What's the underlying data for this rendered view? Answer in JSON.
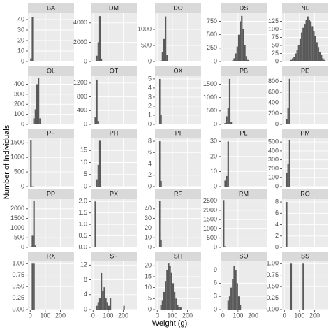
{
  "chart_data": {
    "type": "histogram",
    "xlabel": "Weight (g)",
    "ylabel": "Number of Individuals",
    "xlim": [
      -15,
      290
    ],
    "xticks": [
      0,
      100,
      200
    ],
    "color": "#595959",
    "grid": true,
    "facets": [
      {
        "title": "BA",
        "bins": [
          0,
          10,
          20
        ],
        "counts": [
          3,
          42
        ],
        "ylim": [
          0,
          46
        ],
        "yticks": [
          0,
          10,
          20,
          30,
          40
        ]
      },
      {
        "title": "DM",
        "bins": [
          10,
          20,
          30,
          40,
          50,
          60
        ],
        "counts": [
          50,
          600,
          2000,
          4700,
          300
        ],
        "ylim": [
          0,
          5000
        ],
        "yticks": [
          0,
          2000,
          4000
        ]
      },
      {
        "title": "DO",
        "bins": [
          20,
          30,
          40,
          50,
          60,
          70
        ],
        "counts": [
          30,
          300,
          700,
          1400,
          200
        ],
        "ylim": [
          0,
          1500
        ],
        "yticks": [
          0,
          500,
          1000
        ]
      },
      {
        "title": "DS",
        "bins": [
          60,
          70,
          80,
          90,
          100,
          110,
          120,
          130,
          140,
          150,
          160,
          170,
          180,
          190
        ],
        "counts": [
          20,
          60,
          150,
          280,
          500,
          750,
          850,
          600,
          300,
          100,
          30,
          10,
          5
        ],
        "ylim": [
          0,
          900
        ],
        "yticks": [
          0,
          250,
          500,
          750
        ]
      },
      {
        "title": "NL",
        "bins": [
          30,
          40,
          50,
          60,
          70,
          80,
          90,
          100,
          110,
          120,
          130,
          140,
          150,
          160,
          170,
          180,
          190,
          200,
          210,
          220,
          230,
          240,
          250,
          260,
          270,
          280
        ],
        "counts": [
          2,
          5,
          10,
          15,
          25,
          35,
          50,
          70,
          90,
          105,
          115,
          130,
          140,
          130,
          125,
          110,
          95,
          80,
          60,
          45,
          30,
          20,
          10,
          5,
          2
        ],
        "ylim": [
          0,
          150
        ],
        "yticks": [
          0,
          25,
          50,
          75,
          100,
          125
        ]
      },
      {
        "title": "OL",
        "bins": [
          20,
          30,
          40,
          50,
          60,
          70
        ],
        "counts": [
          60,
          150,
          400,
          460,
          60
        ],
        "ylim": [
          0,
          480
        ],
        "yticks": [
          0,
          100,
          200,
          300,
          400
        ]
      },
      {
        "title": "OT",
        "bins": [
          10,
          20,
          30,
          40
        ],
        "counts": [
          200,
          1300,
          100
        ],
        "ylim": [
          0,
          1400
        ],
        "yticks": [
          0,
          400,
          800,
          1200
        ]
      },
      {
        "title": "OX",
        "bins": [
          10,
          20,
          30
        ],
        "counts": [
          5,
          1
        ],
        "ylim": [
          0,
          5.3
        ],
        "yticks": [
          0,
          1,
          2,
          3,
          4,
          5
        ]
      },
      {
        "title": "PB",
        "bins": [
          10,
          20,
          30,
          40,
          50,
          60
        ],
        "counts": [
          50,
          300,
          600,
          1700,
          100
        ],
        "ylim": [
          0,
          1800
        ],
        "yticks": [
          0,
          500,
          1000,
          1500
        ]
      },
      {
        "title": "PE",
        "bins": [
          10,
          20,
          30,
          40
        ],
        "counts": [
          100,
          300,
          850
        ],
        "ylim": [
          0,
          900
        ],
        "yticks": [
          0,
          200,
          400,
          600,
          800
        ]
      },
      {
        "title": "PF",
        "bins": [
          0,
          10,
          20
        ],
        "counts": [
          1600,
          10
        ],
        "ylim": [
          0,
          1650
        ],
        "yticks": [
          0,
          500,
          1000,
          1500
        ]
      },
      {
        "title": "PH",
        "bins": [
          20,
          30,
          40,
          50
        ],
        "counts": [
          3,
          9,
          19
        ],
        "ylim": [
          0,
          20
        ],
        "yticks": [
          0,
          5,
          10,
          15
        ]
      },
      {
        "title": "PI",
        "bins": [
          10,
          20,
          30
        ],
        "counts": [
          8,
          1
        ],
        "ylim": [
          0,
          8.5
        ],
        "yticks": [
          0,
          2,
          4,
          6,
          8
        ]
      },
      {
        "title": "PL",
        "bins": [
          10,
          20,
          30,
          40
        ],
        "counts": [
          4,
          7,
          30
        ],
        "ylim": [
          0,
          32
        ],
        "yticks": [
          0,
          10,
          20,
          30
        ]
      },
      {
        "title": "PM",
        "bins": [
          10,
          20,
          30,
          40
        ],
        "counts": [
          150,
          250,
          520
        ],
        "ylim": [
          0,
          540
        ],
        "yticks": [
          0,
          100,
          200,
          300,
          400,
          500
        ]
      },
      {
        "title": "PP",
        "bins": [
          0,
          10,
          20,
          30,
          40
        ],
        "counts": [
          50,
          600,
          2400,
          100
        ],
        "ylim": [
          0,
          2500
        ],
        "yticks": [
          0,
          500,
          1000,
          1500,
          2000
        ]
      },
      {
        "title": "PX",
        "bins": [
          10,
          20
        ],
        "counts": [
          2
        ],
        "ylim": [
          0,
          2.1
        ],
        "yticks": [
          {
            "value": 0,
            "label": "0.0"
          },
          0.5,
          {
            "value": 1,
            "label": "1.0"
          },
          1.5,
          {
            "value": 2,
            "label": "2.0"
          }
        ]
      },
      {
        "title": "RF",
        "bins": [
          10,
          20,
          30
        ],
        "counts": [
          48,
          8
        ],
        "ylim": [
          0,
          50
        ],
        "yticks": [
          0,
          10,
          20,
          30,
          40
        ]
      },
      {
        "title": "RM",
        "bins": [
          0,
          10,
          20
        ],
        "counts": [
          2550,
          60
        ],
        "ylim": [
          0,
          2600
        ],
        "yticks": [
          0,
          500,
          1000,
          1500,
          2000,
          2500
        ]
      },
      {
        "title": "RO",
        "bins": [
          10,
          20
        ],
        "counts": [
          8
        ],
        "ylim": [
          0,
          8.5
        ],
        "yticks": [
          0,
          2,
          4,
          6,
          8
        ]
      },
      {
        "title": "RX",
        "bins": [
          10,
          20,
          30
        ],
        "counts": [
          1,
          1
        ],
        "ylim": [
          0,
          1.05
        ],
        "yticks": [
          {
            "value": 0,
            "label": "0.00"
          },
          0.25,
          {
            "value": 0.5,
            "label": "0.50"
          },
          0.75,
          {
            "value": 1,
            "label": "1.00"
          }
        ]
      },
      {
        "title": "SF",
        "bins": [
          20,
          30,
          40,
          50,
          60,
          70,
          80,
          90,
          100,
          110,
          120,
          130,
          140,
          150,
          160,
          170,
          180,
          190,
          200,
          210
        ],
        "counts": [
          1,
          2,
          3,
          10,
          5,
          6,
          3,
          2,
          1,
          3,
          0,
          0,
          0,
          0,
          0,
          0,
          0,
          0,
          1
        ],
        "ylim": [
          0,
          13
        ],
        "yticks": [
          0,
          4,
          8,
          12
        ]
      },
      {
        "title": "SH",
        "bins": [
          20,
          30,
          40,
          50,
          60,
          70,
          80,
          90,
          100,
          110,
          120,
          130,
          140,
          150,
          160
        ],
        "counts": [
          2,
          4,
          8,
          13,
          18,
          21,
          20,
          17,
          12,
          8,
          5,
          2,
          1,
          1
        ],
        "ylim": [
          0,
          22
        ],
        "yticks": [
          0,
          5,
          10,
          15,
          20
        ]
      },
      {
        "title": "SO",
        "bins": [
          30,
          40,
          50,
          60,
          70,
          80,
          90,
          100,
          110,
          120
        ],
        "counts": [
          2,
          3,
          5,
          7,
          10,
          9,
          6,
          3,
          1
        ],
        "ylim": [
          0,
          11
        ],
        "yticks": [
          0,
          3,
          6,
          9
        ]
      },
      {
        "title": "SS",
        "bins": [
          40,
          50,
          60,
          70,
          80,
          90,
          100,
          110,
          120,
          130
        ],
        "counts": [
          1,
          0,
          0,
          0,
          0,
          0,
          0,
          0,
          1
        ],
        "ylim": [
          0,
          1.05
        ],
        "yticks": [
          {
            "value": 0,
            "label": "0.00"
          },
          0.25,
          {
            "value": 0.5,
            "label": "0.50"
          },
          0.75,
          {
            "value": 1,
            "label": "1.00"
          }
        ]
      }
    ]
  }
}
